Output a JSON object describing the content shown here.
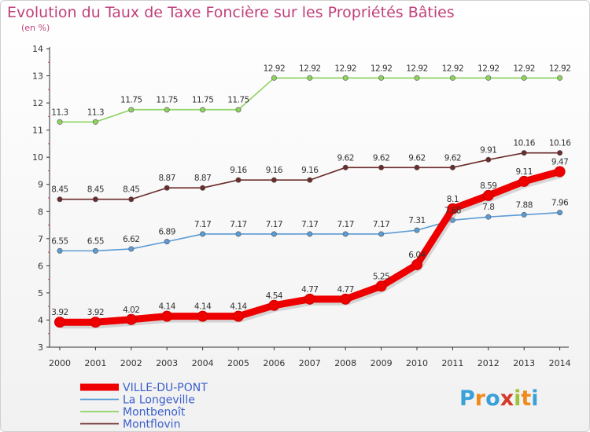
{
  "title": "Evolution du Taux de Taxe Foncière sur les Propriétés Bâties",
  "subtitle": "(en %)",
  "logo": {
    "letters": [
      "P",
      "r",
      "o",
      "x",
      "i",
      "t",
      "i"
    ],
    "colors": [
      "#3aa0d8",
      "#f08a1c",
      "#3aa0d8",
      "#d43a2a",
      "#9bc53d",
      "#f08a1c",
      "#3aa0d8"
    ]
  },
  "chart_data": {
    "type": "line",
    "categories": [
      "2000",
      "2001",
      "2002",
      "2003",
      "2004",
      "2005",
      "2006",
      "2007",
      "2008",
      "2009",
      "2010",
      "2011",
      "2012",
      "2013",
      "2014"
    ],
    "y_ticks": [
      3,
      4,
      5,
      6,
      7,
      8,
      9,
      10,
      11,
      12,
      13,
      14
    ],
    "ylim": [
      3,
      14
    ],
    "grid": false,
    "legend_position": "bottom-left",
    "series": [
      {
        "name": "VILLE-DU-PONT",
        "color": "#ee0000",
        "values": [
          3.92,
          3.92,
          4.02,
          4.14,
          4.14,
          4.14,
          4.54,
          4.77,
          4.77,
          5.25,
          6.04,
          8.1,
          8.59,
          9.11,
          9.47
        ],
        "labels": [
          "3.92",
          "3.92",
          "4.02",
          "4.14",
          "4.14",
          "4.14",
          "4.54",
          "4.77",
          "4.77",
          "5.25",
          "6.04",
          "8.1",
          "8.59",
          "9.11",
          "9.47"
        ]
      },
      {
        "name": "La Longeville",
        "color": "#5b9bd5",
        "values": [
          6.55,
          6.55,
          6.62,
          6.89,
          7.17,
          7.17,
          7.17,
          7.17,
          7.17,
          7.17,
          7.31,
          7.68,
          7.8,
          7.88,
          7.96
        ],
        "labels": [
          "6.55",
          "6.55",
          "6.62",
          "6.89",
          "7.17",
          "7.17",
          "7.17",
          "7.17",
          "7.17",
          "7.17",
          "7.31",
          "7.68",
          "7.8",
          "7.88",
          "7.96"
        ]
      },
      {
        "name": "Montbenoît",
        "color": "#8dd35f",
        "values": [
          11.3,
          11.3,
          11.75,
          11.75,
          11.75,
          11.75,
          12.92,
          12.92,
          12.92,
          12.92,
          12.92,
          12.92,
          12.92,
          12.92,
          12.92
        ],
        "labels": [
          "11.3",
          "11.3",
          "11.75",
          "11.75",
          "11.75",
          "11.75",
          "12.92",
          "12.92",
          "12.92",
          "12.92",
          "12.92",
          "12.92",
          "12.92",
          "12.92",
          "12.92"
        ]
      },
      {
        "name": "Montflovin",
        "color": "#6b2b2b",
        "values": [
          8.45,
          8.45,
          8.45,
          8.87,
          8.87,
          9.16,
          9.16,
          9.16,
          9.62,
          9.62,
          9.62,
          9.62,
          9.91,
          10.16,
          10.16
        ],
        "labels": [
          "8.45",
          "8.45",
          "8.45",
          "8.87",
          "8.87",
          "9.16",
          "9.16",
          "9.16",
          "9.62",
          "9.62",
          "9.62",
          "9.62",
          "9.91",
          "10.16",
          "10.16"
        ]
      }
    ]
  }
}
